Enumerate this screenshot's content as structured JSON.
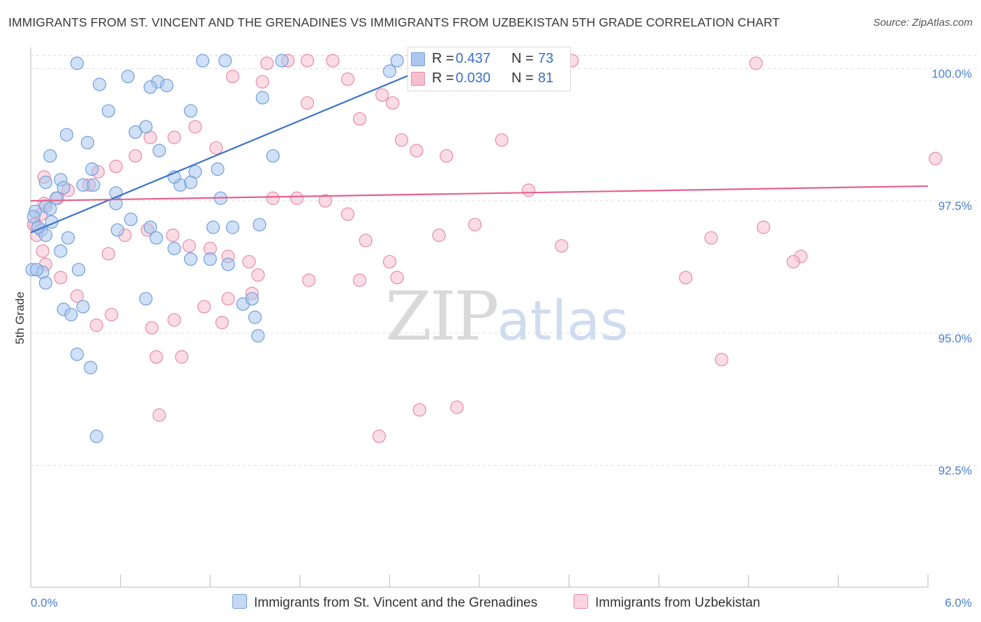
{
  "header": {
    "title": "IMMIGRANTS FROM ST. VINCENT AND THE GRENADINES VS IMMIGRANTS FROM UZBEKISTAN 5TH GRADE CORRELATION CHART",
    "source": "Source: ZipAtlas.com"
  },
  "watermark": {
    "zip": "ZIP",
    "atlas": "atlas"
  },
  "legend": {
    "rows": [
      {
        "r_key": "R =",
        "r_val": "0.437",
        "n_key": "N =",
        "n_val": "73"
      },
      {
        "r_key": "R =",
        "r_val": "0.030",
        "n_key": "N =",
        "n_val": "81"
      }
    ]
  },
  "bottom_legend": {
    "series1": "Immigrants from St. Vincent and the Grenadines",
    "series2": "Immigrants from Uzbekistan"
  },
  "colors": {
    "blue_fill": "#aac6ee",
    "blue_stroke": "#6f9fdc",
    "blue_line": "#3a72c9",
    "pink_fill": "#f6bfd0",
    "pink_stroke": "#e98aa9",
    "pink_line": "#e7618c",
    "grid": "#dddddd",
    "tick_text": "#4a7fcf"
  },
  "chart_data": {
    "type": "scatter",
    "title": "IMMIGRANTS FROM ST. VINCENT AND THE GRENADINES VS IMMIGRANTS FROM UZBEKISTAN 5TH GRADE CORRELATION CHART",
    "xlabel": "",
    "ylabel": "5th Grade",
    "xlim": [
      0,
      6
    ],
    "ylim": [
      90.2,
      100.4
    ],
    "x_tick_labels": [
      "0.0%",
      "6.0%"
    ],
    "y_ticks": [
      92.5,
      95.0,
      97.5,
      100.0
    ],
    "y_tick_labels": [
      "92.5%",
      "95.0%",
      "97.5%",
      "100.0%"
    ],
    "grid": true,
    "legend_position": "top-center",
    "series": [
      {
        "name": "Immigrants from St. Vincent and the Grenadines",
        "color": "#aac6ee",
        "trend": {
          "x": [
            0,
            2.85
          ],
          "y": [
            96.9,
            100.25
          ]
        },
        "points": [
          [
            0.31,
            100.1
          ],
          [
            0.65,
            99.85
          ],
          [
            0.85,
            99.75
          ],
          [
            1.15,
            100.15
          ],
          [
            1.68,
            100.15
          ],
          [
            1.3,
            100.15
          ],
          [
            0.46,
            99.7
          ],
          [
            0.91,
            99.68
          ],
          [
            0.8,
            99.65
          ],
          [
            1.07,
            99.2
          ],
          [
            1.55,
            99.45
          ],
          [
            0.52,
            99.2
          ],
          [
            0.7,
            98.8
          ],
          [
            0.24,
            98.75
          ],
          [
            0.77,
            98.9
          ],
          [
            0.38,
            98.6
          ],
          [
            0.86,
            98.45
          ],
          [
            0.13,
            98.35
          ],
          [
            1.62,
            98.35
          ],
          [
            0.2,
            97.9
          ],
          [
            0.35,
            97.8
          ],
          [
            0.22,
            97.75
          ],
          [
            0.42,
            97.8
          ],
          [
            0.1,
            97.85
          ],
          [
            0.1,
            97.4
          ],
          [
            0.13,
            97.35
          ],
          [
            0.57,
            97.65
          ],
          [
            0.57,
            97.45
          ],
          [
            0.03,
            97.3
          ],
          [
            0.02,
            97.2
          ],
          [
            0.14,
            97.1
          ],
          [
            0.07,
            96.95
          ],
          [
            0.1,
            96.85
          ],
          [
            0.25,
            96.8
          ],
          [
            0.2,
            96.55
          ],
          [
            0.32,
            96.2
          ],
          [
            0.01,
            96.2
          ],
          [
            0.08,
            96.15
          ],
          [
            0.1,
            95.95
          ],
          [
            0.35,
            95.5
          ],
          [
            0.22,
            95.45
          ],
          [
            0.77,
            95.65
          ],
          [
            0.27,
            95.35
          ],
          [
            1.5,
            95.3
          ],
          [
            1.52,
            94.95
          ],
          [
            0.31,
            94.6
          ],
          [
            0.4,
            94.35
          ],
          [
            0.44,
            93.05
          ],
          [
            0.8,
            97.0
          ],
          [
            0.84,
            96.8
          ],
          [
            0.96,
            96.6
          ],
          [
            1.07,
            96.4
          ],
          [
            1.2,
            96.4
          ],
          [
            1.22,
            97.0
          ],
          [
            1.35,
            97.0
          ],
          [
            1.53,
            97.05
          ],
          [
            1.32,
            96.3
          ],
          [
            1.42,
            95.55
          ],
          [
            1.48,
            95.65
          ],
          [
            0.67,
            97.15
          ],
          [
            0.58,
            96.95
          ],
          [
            0.17,
            97.55
          ],
          [
            0.05,
            97.0
          ],
          [
            1.0,
            97.8
          ],
          [
            0.96,
            97.95
          ],
          [
            1.1,
            98.05
          ],
          [
            1.27,
            97.55
          ],
          [
            1.07,
            97.85
          ],
          [
            1.25,
            98.1
          ],
          [
            0.41,
            98.1
          ],
          [
            2.45,
            100.15
          ],
          [
            2.4,
            99.95
          ],
          [
            0.04,
            96.2
          ]
        ]
      },
      {
        "name": "Immigrants from Uzbekistan",
        "color": "#f6bfd0",
        "trend": {
          "x": [
            0,
            6
          ],
          "y": [
            97.5,
            97.78
          ]
        },
        "points": [
          [
            1.58,
            100.1
          ],
          [
            1.72,
            100.15
          ],
          [
            1.85,
            100.15
          ],
          [
            2.02,
            100.15
          ],
          [
            2.12,
            99.8
          ],
          [
            1.55,
            99.75
          ],
          [
            1.35,
            99.85
          ],
          [
            1.85,
            99.35
          ],
          [
            2.35,
            99.5
          ],
          [
            2.42,
            99.35
          ],
          [
            2.2,
            99.05
          ],
          [
            1.1,
            98.9
          ],
          [
            0.96,
            98.7
          ],
          [
            0.8,
            98.7
          ],
          [
            1.24,
            98.5
          ],
          [
            0.7,
            98.35
          ],
          [
            0.57,
            98.15
          ],
          [
            0.45,
            98.05
          ],
          [
            0.39,
            97.8
          ],
          [
            0.25,
            97.7
          ],
          [
            0.18,
            97.55
          ],
          [
            0.09,
            97.45
          ],
          [
            0.07,
            97.25
          ],
          [
            0.03,
            97.05
          ],
          [
            0.04,
            96.85
          ],
          [
            0.08,
            96.55
          ],
          [
            0.1,
            96.3
          ],
          [
            0.2,
            96.05
          ],
          [
            0.31,
            95.7
          ],
          [
            0.44,
            95.15
          ],
          [
            0.54,
            95.35
          ],
          [
            0.96,
            95.25
          ],
          [
            1.16,
            95.5
          ],
          [
            1.28,
            95.2
          ],
          [
            1.32,
            95.65
          ],
          [
            1.48,
            95.75
          ],
          [
            0.52,
            96.5
          ],
          [
            0.63,
            96.85
          ],
          [
            0.78,
            96.95
          ],
          [
            0.95,
            96.85
          ],
          [
            1.06,
            96.65
          ],
          [
            1.2,
            96.6
          ],
          [
            1.32,
            96.45
          ],
          [
            1.46,
            96.35
          ],
          [
            1.52,
            96.1
          ],
          [
            1.86,
            96.0
          ],
          [
            2.2,
            96.0
          ],
          [
            1.62,
            97.55
          ],
          [
            1.78,
            97.55
          ],
          [
            1.97,
            97.5
          ],
          [
            2.12,
            97.25
          ],
          [
            2.24,
            96.75
          ],
          [
            2.4,
            96.35
          ],
          [
            2.45,
            96.05
          ],
          [
            2.73,
            96.85
          ],
          [
            2.78,
            98.35
          ],
          [
            2.58,
            98.45
          ],
          [
            2.48,
            98.65
          ],
          [
            3.15,
            98.65
          ],
          [
            3.33,
            97.7
          ],
          [
            2.97,
            97.05
          ],
          [
            3.55,
            96.65
          ],
          [
            4.38,
            96.05
          ],
          [
            4.55,
            96.8
          ],
          [
            4.9,
            97.0
          ],
          [
            0.81,
            95.1
          ],
          [
            0.84,
            94.55
          ],
          [
            0.86,
            93.45
          ],
          [
            1.01,
            94.55
          ],
          [
            2.6,
            93.55
          ],
          [
            2.85,
            93.6
          ],
          [
            2.33,
            93.05
          ],
          [
            4.62,
            94.5
          ],
          [
            5.15,
            96.45
          ],
          [
            5.1,
            96.35
          ],
          [
            6.05,
            98.3
          ],
          [
            4.85,
            100.1
          ],
          [
            3.62,
            100.15
          ],
          [
            2.9,
            100.2
          ],
          [
            0.09,
            97.95
          ],
          [
            0.02,
            97.05
          ]
        ]
      }
    ]
  }
}
